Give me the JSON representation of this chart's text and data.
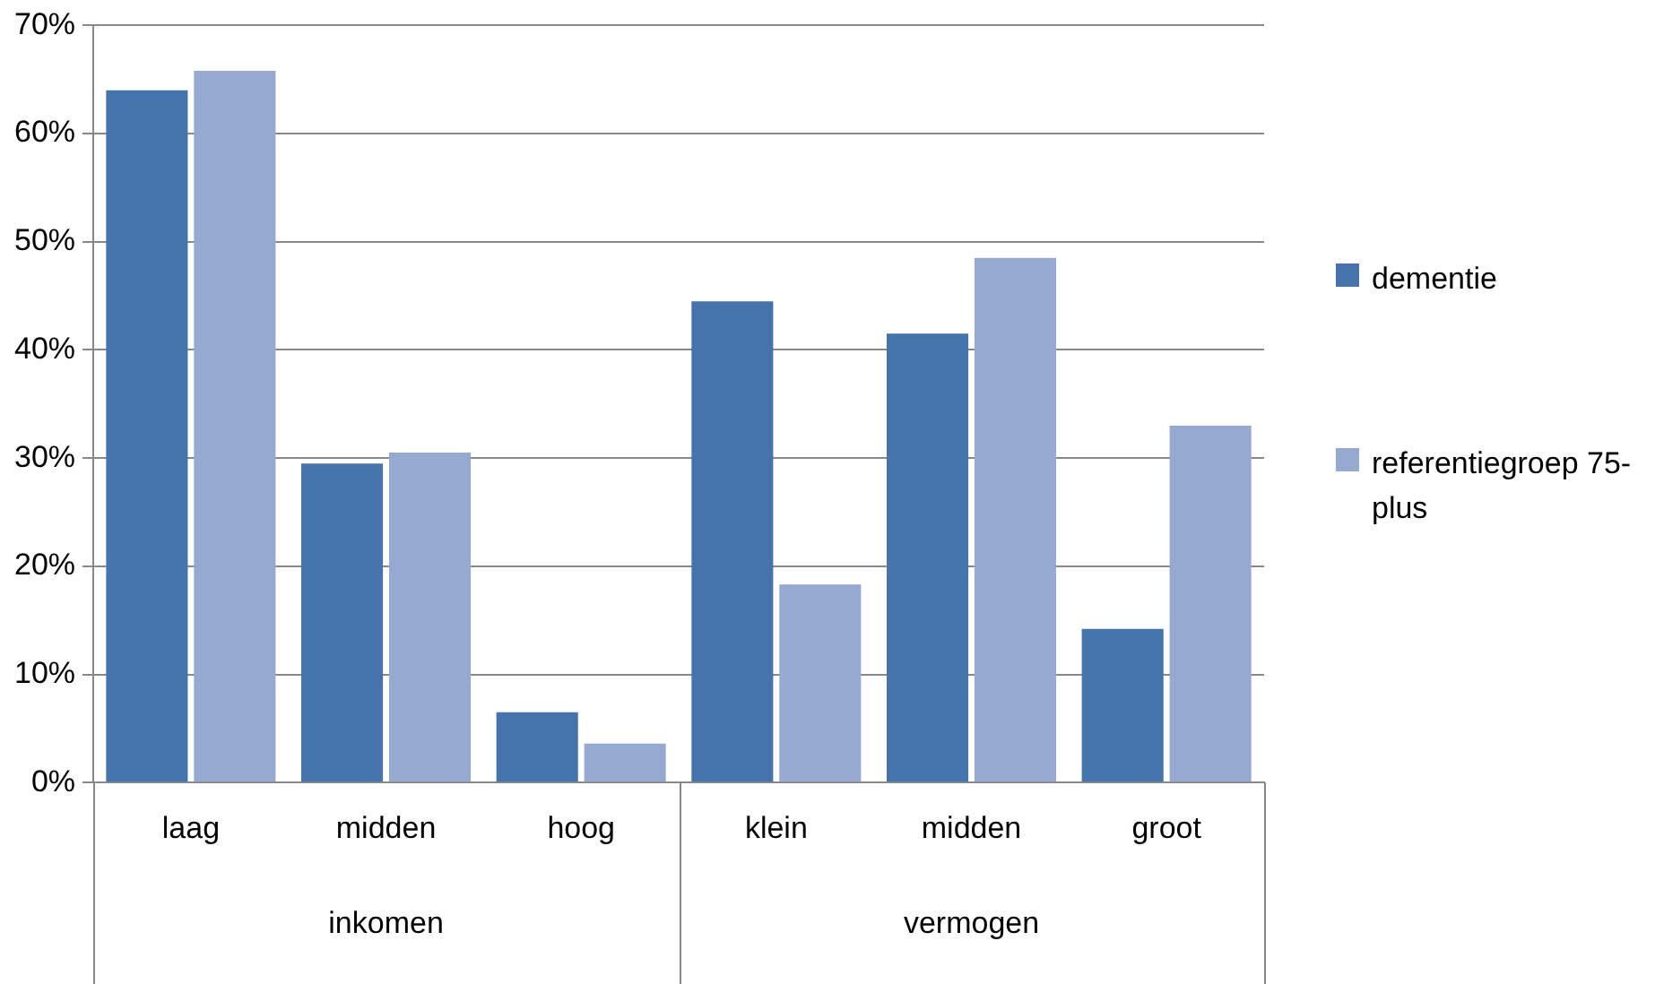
{
  "chart_data": {
    "type": "bar",
    "categories": [
      "laag",
      "midden",
      "hoog",
      "klein",
      "midden",
      "groot"
    ],
    "series": [
      {
        "name": "dementie",
        "color": "#4673ab",
        "values": [
          64,
          29.5,
          6.5,
          44.5,
          41.5,
          14.2
        ]
      },
      {
        "name": "referentiegroep 75-plus",
        "color": "#95a9d1",
        "values": [
          65.8,
          30.5,
          3.6,
          18.3,
          48.5,
          33
        ]
      }
    ],
    "annotations": [
      "inkomen",
      "vermogen"
    ],
    "ylim": [
      0,
      70
    ],
    "yticks": [
      {
        "value": 0,
        "label": "0%"
      },
      {
        "value": 10,
        "label": "10%"
      },
      {
        "value": 20,
        "label": "20%"
      },
      {
        "value": 30,
        "label": "30%"
      },
      {
        "value": 40,
        "label": "40%"
      },
      {
        "value": 50,
        "label": "50%"
      },
      {
        "value": 60,
        "label": "60%"
      },
      {
        "value": 70,
        "label": "70%"
      }
    ],
    "grid": "y",
    "legend": "right"
  }
}
